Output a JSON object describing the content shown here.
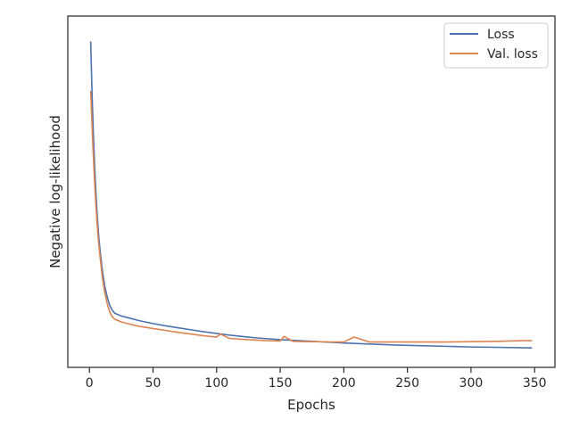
{
  "chart_data": {
    "type": "line",
    "title": "",
    "xlabel": "Epochs",
    "ylabel": "Negative log-likelihood",
    "xlim": [
      -17,
      366
    ],
    "ylim": [
      0,
      100
    ],
    "xticks": [
      0,
      50,
      100,
      150,
      200,
      250,
      300,
      350
    ],
    "yticks_shown": false,
    "grid": false,
    "legend_position": "top-right",
    "series": [
      {
        "name": "Loss",
        "color": "#4c72b0",
        "x": [
          1,
          2,
          3,
          4,
          5,
          6,
          7,
          8,
          10,
          12,
          14,
          16,
          18,
          20,
          25,
          30,
          35,
          40,
          50,
          60,
          70,
          80,
          90,
          100,
          110,
          120,
          130,
          140,
          150,
          160,
          170,
          180,
          190,
          200,
          220,
          240,
          260,
          280,
          300,
          320,
          348
        ],
        "y": [
          95.0,
          80.0,
          68.0,
          58.0,
          50.0,
          43.0,
          37.5,
          33.0,
          26.0,
          21.0,
          17.5,
          15.0,
          13.5,
          12.6,
          11.8,
          11.3,
          10.8,
          10.3,
          9.5,
          8.8,
          8.2,
          7.6,
          7.0,
          6.5,
          6.0,
          5.6,
          5.2,
          4.9,
          4.6,
          4.4,
          4.2,
          4.0,
          3.8,
          3.6,
          3.3,
          3.0,
          2.8,
          2.6,
          2.4,
          2.3,
          2.1
        ]
      },
      {
        "name": "Val. loss",
        "color": "#dd8452",
        "x": [
          1,
          2,
          3,
          4,
          5,
          6,
          7,
          8,
          10,
          12,
          14,
          16,
          18,
          20,
          25,
          30,
          35,
          40,
          50,
          60,
          70,
          80,
          90,
          100,
          103,
          110,
          120,
          130,
          140,
          150,
          153,
          160,
          170,
          180,
          190,
          200,
          208,
          220,
          240,
          260,
          280,
          300,
          320,
          340,
          348
        ],
        "y": [
          80.0,
          70.0,
          61.0,
          53.0,
          46.0,
          40.0,
          35.0,
          31.0,
          24.0,
          19.0,
          15.5,
          13.0,
          11.5,
          10.8,
          10.0,
          9.5,
          9.0,
          8.6,
          8.0,
          7.4,
          6.8,
          6.3,
          5.8,
          5.4,
          6.3,
          5.0,
          4.7,
          4.5,
          4.3,
          4.2,
          5.6,
          4.1,
          4.0,
          4.0,
          3.9,
          3.9,
          5.4,
          3.9,
          3.9,
          3.9,
          3.9,
          4.0,
          4.1,
          4.3,
          4.3
        ]
      }
    ]
  }
}
